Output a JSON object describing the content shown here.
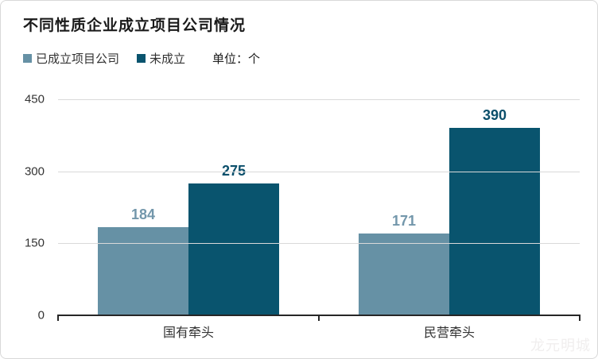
{
  "title": "不同性质企业成立项目公司情况",
  "legend": {
    "items": [
      {
        "label": "已成立项目公司",
        "color": "#6691a5"
      },
      {
        "label": "未成立",
        "color": "#09546e"
      }
    ],
    "unit_label": "单位：个"
  },
  "watermark": "龙元明城",
  "colors": {
    "series1_bar": "#6691a5",
    "series1_label": "#7397ab",
    "series2_bar": "#09546e",
    "series2_label": "#0b4f6b",
    "gridline": "#d9d9d9",
    "axis": "#262626"
  },
  "chart_data": {
    "type": "bar",
    "title": "不同性质企业成立项目公司情况",
    "unit": "个",
    "categories": [
      "国有牵头",
      "民营牵头"
    ],
    "series": [
      {
        "name": "已成立项目公司",
        "values": [
          184,
          171
        ],
        "color": "#6691a5",
        "label_color": "#7397ab"
      },
      {
        "name": "未成立",
        "values": [
          275,
          390
        ],
        "color": "#09546e",
        "label_color": "#0b4f6b"
      }
    ],
    "ylim": [
      0,
      450
    ],
    "yticks": [
      450,
      300,
      150,
      0
    ],
    "grid": "horizontal-gridlines-at-150-300-450",
    "legend_position": "top-left",
    "value_labels": "above-bars"
  }
}
